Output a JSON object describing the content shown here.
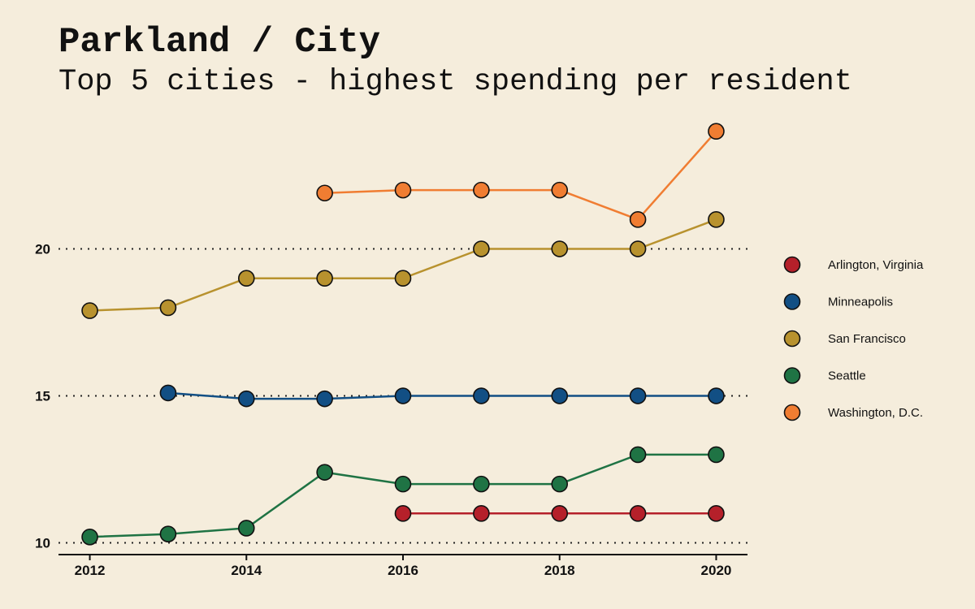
{
  "header": {
    "title": "Parkland / City",
    "subtitle": "Top 5 cities - highest spending per resident"
  },
  "chart_data": {
    "type": "line",
    "title": "Parkland / City",
    "subtitle": "Top 5 cities - highest spending per resident",
    "xlabel": "",
    "ylabel": "",
    "x_ticks": [
      2012,
      2014,
      2016,
      2018,
      2020
    ],
    "y_ticks": [
      10,
      15,
      20
    ],
    "xlim": [
      2011.6,
      2020.4
    ],
    "ylim": [
      9.6,
      24.6
    ],
    "grid": "dotted horizontal lines at y ticks",
    "legend_position": "right",
    "series": [
      {
        "name": "Arlington, Virginia",
        "color": "#b5202a",
        "points": [
          [
            2016,
            11.0
          ],
          [
            2017,
            11.0
          ],
          [
            2018,
            11.0
          ],
          [
            2019,
            11.0
          ],
          [
            2020,
            11.0
          ]
        ]
      },
      {
        "name": "Minneapolis",
        "color": "#124f84",
        "points": [
          [
            2013,
            15.1
          ],
          [
            2014,
            14.9
          ],
          [
            2015,
            14.9
          ],
          [
            2016,
            15.0
          ],
          [
            2017,
            15.0
          ],
          [
            2018,
            15.0
          ],
          [
            2019,
            15.0
          ],
          [
            2020,
            15.0
          ]
        ]
      },
      {
        "name": "San Francisco",
        "color": "#b8922e",
        "points": [
          [
            2012,
            17.9
          ],
          [
            2013,
            18.0
          ],
          [
            2014,
            19.0
          ],
          [
            2015,
            19.0
          ],
          [
            2016,
            19.0
          ],
          [
            2017,
            20.0
          ],
          [
            2018,
            20.0
          ],
          [
            2019,
            20.0
          ],
          [
            2020,
            21.0
          ]
        ]
      },
      {
        "name": "Seattle",
        "color": "#1f7344",
        "points": [
          [
            2012,
            10.2
          ],
          [
            2013,
            10.3
          ],
          [
            2014,
            10.5
          ],
          [
            2015,
            12.4
          ],
          [
            2016,
            12.0
          ],
          [
            2017,
            12.0
          ],
          [
            2018,
            12.0
          ],
          [
            2019,
            13.0
          ],
          [
            2020,
            13.0
          ]
        ]
      },
      {
        "name": "Washington, D.C.",
        "color": "#f07d32",
        "points": [
          [
            2015,
            21.9
          ],
          [
            2016,
            22.0
          ],
          [
            2017,
            22.0
          ],
          [
            2018,
            22.0
          ],
          [
            2019,
            21.0
          ],
          [
            2020,
            24.0
          ]
        ]
      }
    ]
  }
}
